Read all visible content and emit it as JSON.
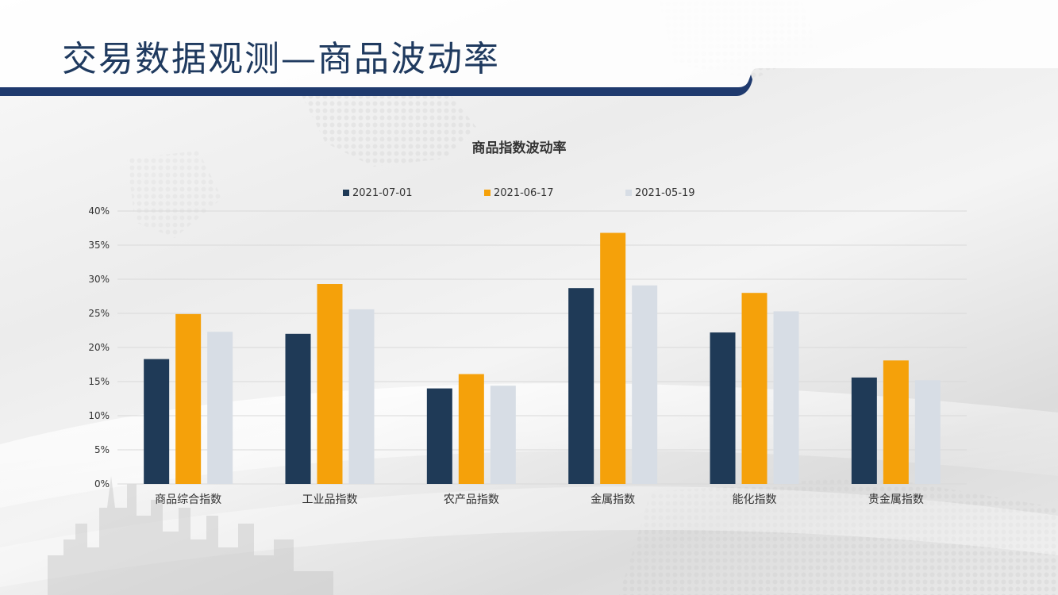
{
  "slide": {
    "title": "交易数据观测—商品波动率"
  },
  "colors": {
    "header_bar": "#1f3a6e",
    "series": [
      "#1f3a57",
      "#f5a10a",
      "#d7dde5"
    ],
    "title_text": "#1f3a5f",
    "chart_text": "#333333",
    "grid": "#d9d9d9"
  },
  "chart_data": {
    "type": "bar",
    "title": "商品指数波动率",
    "categories": [
      "商品综合指数",
      "工业品指数",
      "农产品指数",
      "金属指数",
      "能化指数",
      "贵金属指数"
    ],
    "series": [
      {
        "name": "2021-07-01",
        "values": [
          18.3,
          22.0,
          14.0,
          28.7,
          22.2,
          15.6
        ]
      },
      {
        "name": "2021-06-17",
        "values": [
          24.9,
          29.3,
          16.1,
          36.8,
          28.0,
          18.1
        ]
      },
      {
        "name": "2021-05-19",
        "values": [
          22.3,
          25.6,
          14.4,
          29.1,
          25.3,
          15.2
        ]
      }
    ],
    "ylim": [
      0,
      40
    ],
    "yticks": [
      "0%",
      "5%",
      "10%",
      "15%",
      "20%",
      "25%",
      "30%",
      "35%",
      "40%"
    ],
    "grid": true,
    "legend": "top"
  }
}
